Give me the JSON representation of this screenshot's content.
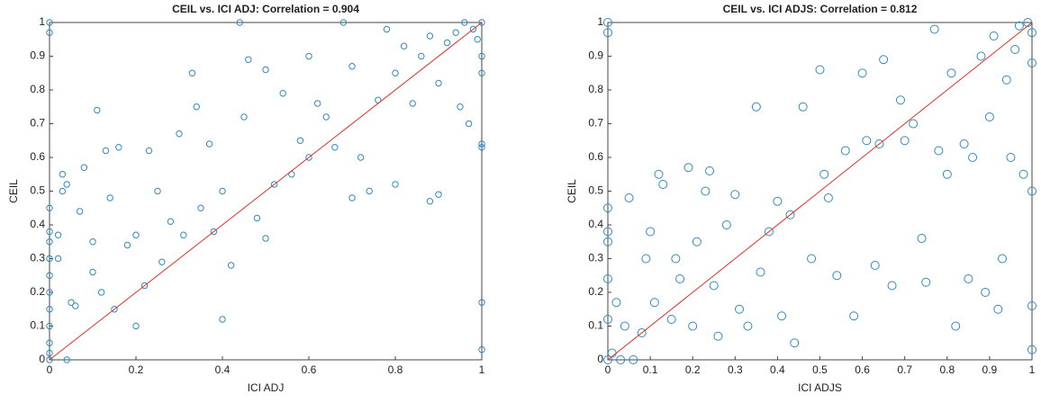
{
  "chart_data": [
    {
      "type": "scatter",
      "title": "CEIL vs. ICI ADJ: Correlation = 0.904",
      "xlabel": "ICI ADJ",
      "ylabel": "CEIL",
      "color": "#2f8ac4",
      "fit_line": {
        "x": [
          0,
          1
        ],
        "y": [
          0,
          1
        ],
        "color": "#e0302a"
      },
      "xlim": [
        0,
        1
      ],
      "ylim": [
        0,
        1
      ],
      "xticks": [
        0,
        0.2,
        0.4,
        0.6,
        0.8,
        1
      ],
      "yticks": [
        0,
        0.1,
        0.2,
        0.3,
        0.4,
        0.5,
        0.6,
        0.7,
        0.8,
        0.9,
        1
      ],
      "x": [
        0,
        0,
        0,
        0,
        0,
        0,
        0,
        0,
        0,
        0,
        0,
        0,
        0,
        0.02,
        0.02,
        0.03,
        0.03,
        0.04,
        0.04,
        0.05,
        0.06,
        0.07,
        0.08,
        0.1,
        0.1,
        0.11,
        0.12,
        0.13,
        0.14,
        0.15,
        0.16,
        0.18,
        0.2,
        0.2,
        0.22,
        0.23,
        0.25,
        0.26,
        0.28,
        0.3,
        0.31,
        0.33,
        0.34,
        0.35,
        0.37,
        0.38,
        0.4,
        0.4,
        0.42,
        0.44,
        0.45,
        0.46,
        0.48,
        0.5,
        0.5,
        0.52,
        0.54,
        0.56,
        0.58,
        0.6,
        0.6,
        0.62,
        0.64,
        0.66,
        0.68,
        0.7,
        0.7,
        0.72,
        0.74,
        0.76,
        0.78,
        0.8,
        0.8,
        0.82,
        0.84,
        0.86,
        0.88,
        0.88,
        0.9,
        0.9,
        0.92,
        0.94,
        0.95,
        0.96,
        0.97,
        0.98,
        0.99,
        1,
        1,
        1,
        1,
        1,
        1,
        1
      ],
      "y": [
        1,
        0.97,
        0.45,
        0.38,
        0.35,
        0.3,
        0.25,
        0.2,
        0.15,
        0.1,
        0.05,
        0.02,
        0,
        0.37,
        0.3,
        0.55,
        0.5,
        0.52,
        0,
        0.17,
        0.16,
        0.44,
        0.57,
        0.35,
        0.26,
        0.74,
        0.2,
        0.62,
        0.48,
        0.15,
        0.63,
        0.34,
        0.1,
        0.37,
        0.22,
        0.62,
        0.5,
        0.29,
        0.41,
        0.67,
        0.37,
        0.85,
        0.75,
        0.45,
        0.64,
        0.38,
        0.5,
        0.12,
        0.28,
        1,
        0.72,
        0.89,
        0.42,
        0.86,
        0.36,
        0.52,
        0.79,
        0.55,
        0.65,
        0.9,
        0.6,
        0.76,
        0.72,
        0.63,
        1,
        0.87,
        0.48,
        0.6,
        0.5,
        0.77,
        0.98,
        0.85,
        0.52,
        0.93,
        0.76,
        0.9,
        0.96,
        0.47,
        0.82,
        0.49,
        0.94,
        0.97,
        0.75,
        1,
        0.7,
        0.98,
        0.95,
        1,
        0.9,
        0.85,
        0.64,
        0.63,
        0.17,
        0.03
      ]
    },
    {
      "type": "scatter",
      "title": "CEIL vs. ICI ADJS: Correlation = 0.812",
      "xlabel": "ICI ADJS",
      "ylabel": "CEIL",
      "color": "#2f8ac4",
      "fit_line": {
        "x": [
          0,
          1
        ],
        "y": [
          0,
          1
        ],
        "color": "#e0302a"
      },
      "xlim": [
        0,
        1
      ],
      "ylim": [
        0,
        1
      ],
      "xticks": [
        0,
        0.1,
        0.2,
        0.3,
        0.4,
        0.5,
        0.6,
        0.7,
        0.8,
        0.9,
        1
      ],
      "yticks": [
        0,
        0.1,
        0.2,
        0.3,
        0.4,
        0.5,
        0.6,
        0.7,
        0.8,
        0.9,
        1
      ],
      "x": [
        0,
        0,
        0,
        0,
        0,
        0,
        0,
        0,
        0.01,
        0.02,
        0.03,
        0.04,
        0.05,
        0.06,
        0.08,
        0.09,
        0.1,
        0.11,
        0.12,
        0.13,
        0.15,
        0.16,
        0.17,
        0.19,
        0.2,
        0.21,
        0.23,
        0.24,
        0.25,
        0.26,
        0.28,
        0.3,
        0.31,
        0.33,
        0.35,
        0.36,
        0.38,
        0.4,
        0.41,
        0.43,
        0.44,
        0.46,
        0.48,
        0.5,
        0.51,
        0.52,
        0.54,
        0.56,
        0.58,
        0.6,
        0.61,
        0.63,
        0.64,
        0.65,
        0.67,
        0.69,
        0.7,
        0.72,
        0.74,
        0.75,
        0.77,
        0.78,
        0.8,
        0.81,
        0.82,
        0.84,
        0.85,
        0.86,
        0.88,
        0.89,
        0.9,
        0.91,
        0.92,
        0.93,
        0.94,
        0.95,
        0.96,
        0.97,
        0.98,
        0.99,
        1,
        1,
        1,
        1,
        1
      ],
      "y": [
        1,
        0.97,
        0.45,
        0.38,
        0.35,
        0.24,
        0.12,
        0,
        0.02,
        0.17,
        0,
        0.1,
        0.48,
        0,
        0.08,
        0.3,
        0.38,
        0.17,
        0.55,
        0.52,
        0.12,
        0.3,
        0.24,
        0.57,
        0.1,
        0.35,
        0.5,
        0.56,
        0.22,
        0.07,
        0.4,
        0.49,
        0.15,
        0.1,
        0.75,
        0.26,
        0.38,
        0.47,
        0.13,
        0.43,
        0.05,
        0.75,
        0.3,
        0.86,
        0.55,
        0.48,
        0.25,
        0.62,
        0.13,
        0.85,
        0.65,
        0.28,
        0.64,
        0.89,
        0.22,
        0.77,
        0.65,
        0.7,
        0.36,
        0.23,
        0.98,
        0.62,
        0.55,
        0.85,
        0.1,
        0.64,
        0.24,
        0.6,
        0.9,
        0.2,
        0.72,
        0.96,
        0.15,
        0.3,
        0.83,
        0.6,
        0.92,
        0.99,
        0.55,
        1,
        0.97,
        0.88,
        0.5,
        0.16,
        0.03
      ]
    }
  ]
}
